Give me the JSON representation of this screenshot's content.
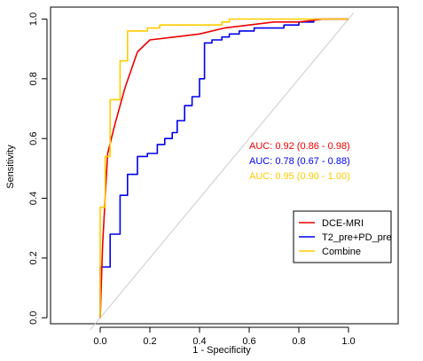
{
  "chart_data": {
    "type": "line",
    "title": "",
    "xlabel": "1 - Specificity",
    "ylabel": "Sensitivity",
    "xlim": [
      -0.2,
      1.2
    ],
    "ylim": [
      -0.02,
      1.04
    ],
    "xticks": [
      "0.0",
      "0.2",
      "0.4",
      "0.6",
      "0.8",
      "1.0"
    ],
    "yticks": [
      "0.0",
      "0.2",
      "0.4",
      "0.6",
      "0.8",
      "1.0"
    ],
    "grid": false,
    "legend_position": "bottom-right",
    "diagonal_reference": true,
    "diagonal_color": "#cccccc",
    "series": [
      {
        "name": "DCE-MRI",
        "color": "#ee0000",
        "x": [
          0.0,
          0.01,
          0.03,
          0.06,
          0.1,
          0.15,
          0.2,
          0.3,
          0.4,
          0.5,
          0.6,
          0.7,
          0.8,
          0.9,
          1.0
        ],
        "y": [
          0.0,
          0.25,
          0.55,
          0.65,
          0.77,
          0.89,
          0.93,
          0.94,
          0.95,
          0.97,
          0.98,
          0.99,
          0.99,
          1.0,
          1.0
        ]
      },
      {
        "name": "T2_pre+PD_pre",
        "color": "#0000ee",
        "x": [
          0.0,
          0.0,
          0.04,
          0.04,
          0.08,
          0.08,
          0.11,
          0.11,
          0.15,
          0.15,
          0.19,
          0.19,
          0.23,
          0.23,
          0.26,
          0.26,
          0.29,
          0.29,
          0.31,
          0.31,
          0.34,
          0.34,
          0.37,
          0.37,
          0.4,
          0.4,
          0.42,
          0.42,
          0.45,
          0.45,
          0.49,
          0.49,
          0.52,
          0.52,
          0.56,
          0.56,
          0.62,
          0.62,
          0.74,
          0.74,
          0.8,
          0.8,
          0.86,
          0.86,
          0.9,
          0.9,
          1.0
        ],
        "y": [
          0.0,
          0.17,
          0.17,
          0.28,
          0.28,
          0.41,
          0.41,
          0.48,
          0.48,
          0.54,
          0.54,
          0.55,
          0.55,
          0.58,
          0.58,
          0.6,
          0.6,
          0.62,
          0.62,
          0.66,
          0.66,
          0.71,
          0.71,
          0.74,
          0.74,
          0.8,
          0.8,
          0.92,
          0.92,
          0.93,
          0.93,
          0.94,
          0.94,
          0.95,
          0.95,
          0.96,
          0.96,
          0.97,
          0.97,
          0.98,
          0.98,
          0.99,
          0.99,
          1.0,
          1.0,
          1.0,
          1.0
        ]
      },
      {
        "name": "Combine",
        "color": "#ffcc00",
        "x": [
          0.0,
          0.0,
          0.02,
          0.02,
          0.04,
          0.04,
          0.08,
          0.08,
          0.11,
          0.11,
          0.19,
          0.19,
          0.24,
          0.24,
          0.49,
          0.49,
          0.52,
          0.52,
          1.0
        ],
        "y": [
          0.0,
          0.37,
          0.37,
          0.54,
          0.54,
          0.73,
          0.73,
          0.86,
          0.86,
          0.96,
          0.96,
          0.97,
          0.97,
          0.98,
          0.98,
          0.99,
          0.99,
          1.0,
          1.0
        ]
      }
    ],
    "annotations": [
      {
        "text": "AUC: 0.92 (0.86 - 0.98)",
        "color": "#ee0000"
      },
      {
        "text": "AUC: 0.78 (0.67 - 0.88)",
        "color": "#0000ee"
      },
      {
        "text": "AUC: 0.95 (0.90 - 1.00)",
        "color": "#ffcc00"
      }
    ]
  }
}
